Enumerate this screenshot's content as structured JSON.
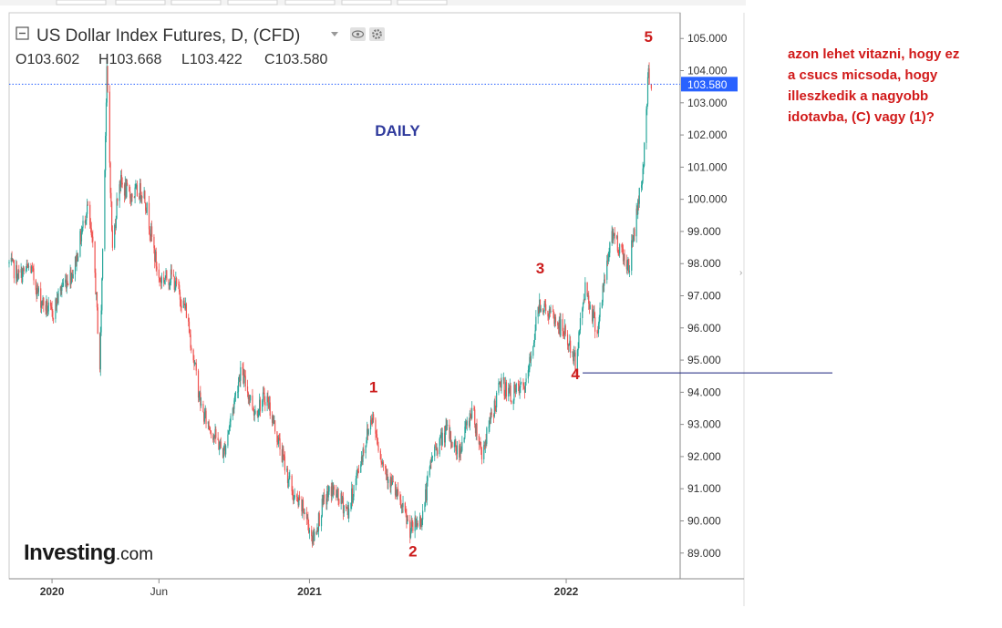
{
  "header": {
    "title": "US Dollar Index Futures, D, (CFD)",
    "ohlc": [
      {
        "key": "O",
        "value": "103.602"
      },
      {
        "key": "H",
        "value": "103.668"
      },
      {
        "key": "L",
        "value": "103.422"
      },
      {
        "key": "C",
        "value": "103.580"
      }
    ]
  },
  "chart_label": "DAILY",
  "watermark": {
    "brand": "Investing",
    "suffix": ".com"
  },
  "note": [
    "azon lehet vitazni, hogy ez",
    "a csucs micsoda, hogy",
    "illeszkedik a nagyobb",
    "idotavba, (C) vagy (1)?"
  ],
  "colors": {
    "up": "#26a69a",
    "down": "#ef5350",
    "last_price": "#2962ff",
    "annotation": "#cc1d1d",
    "daily": "#2f3a9c"
  },
  "icons": [
    "collapse-icon",
    "dropdown-arrow-icon",
    "eye-icon",
    "gear-icon"
  ],
  "chart_data": {
    "type": "line",
    "title": "US Dollar Index Futures, D, (CFD)",
    "interval": "D",
    "ylim": [
      88.2,
      105.8
    ],
    "y_ticks": [
      "105.000",
      "104.000",
      "103.000",
      "102.000",
      "101.000",
      "100.000",
      "99.000",
      "98.000",
      "97.000",
      "96.000",
      "95.000",
      "94.000",
      "93.000",
      "92.000",
      "91.000",
      "90.000",
      "89.000"
    ],
    "x_ticks": [
      {
        "label": "2020",
        "date": "2020-01-01",
        "bold": true
      },
      {
        "label": "Jun",
        "date": "2020-06-01",
        "bold": false
      },
      {
        "label": "2021",
        "date": "2021-01-01",
        "bold": true
      },
      {
        "label": "2022",
        "date": "2022-01-01",
        "bold": true
      }
    ],
    "last_price": {
      "label": "103.580",
      "value": 103.58
    },
    "series": [
      {
        "points": [
          [
            "2019-11-01",
            98.0
          ],
          [
            "2019-11-15",
            97.6
          ],
          [
            "2019-12-01",
            97.9
          ],
          [
            "2019-12-15",
            96.9
          ],
          [
            "2020-01-01",
            96.4
          ],
          [
            "2020-01-15",
            97.3
          ],
          [
            "2020-02-01",
            97.8
          ],
          [
            "2020-02-20",
            99.8
          ],
          [
            "2020-03-01",
            98.1
          ],
          [
            "2020-03-09",
            94.8
          ],
          [
            "2020-03-19",
            103.9
          ],
          [
            "2020-03-27",
            98.4
          ],
          [
            "2020-04-05",
            100.6
          ],
          [
            "2020-04-20",
            100.1
          ],
          [
            "2020-05-10",
            100.3
          ],
          [
            "2020-06-01",
            97.5
          ],
          [
            "2020-06-20",
            97.6
          ],
          [
            "2020-07-10",
            96.5
          ],
          [
            "2020-08-01",
            93.4
          ],
          [
            "2020-08-20",
            92.6
          ],
          [
            "2020-09-01",
            92.1
          ],
          [
            "2020-09-25",
            94.7
          ],
          [
            "2020-10-15",
            93.4
          ],
          [
            "2020-11-01",
            93.9
          ],
          [
            "2020-11-20",
            92.3
          ],
          [
            "2020-12-10",
            90.7
          ],
          [
            "2020-12-25",
            90.3
          ],
          [
            "2021-01-06",
            89.4
          ],
          [
            "2021-01-20",
            90.5
          ],
          [
            "2021-02-01",
            91.0
          ],
          [
            "2021-02-25",
            90.3
          ],
          [
            "2021-03-15",
            91.9
          ],
          [
            "2021-03-31",
            93.3
          ],
          [
            "2021-04-15",
            91.8
          ],
          [
            "2021-05-01",
            91.0
          ],
          [
            "2021-05-25",
            89.7
          ],
          [
            "2021-06-10",
            90.1
          ],
          [
            "2021-06-25",
            92.1
          ],
          [
            "2021-07-15",
            92.8
          ],
          [
            "2021-08-01",
            92.1
          ],
          [
            "2021-08-20",
            93.5
          ],
          [
            "2021-09-03",
            92.1
          ],
          [
            "2021-09-30",
            94.3
          ],
          [
            "2021-10-15",
            93.9
          ],
          [
            "2021-11-05",
            94.2
          ],
          [
            "2021-11-24",
            96.8
          ],
          [
            "2021-12-10",
            96.4
          ],
          [
            "2021-12-31",
            95.8
          ],
          [
            "2022-01-14",
            94.9
          ],
          [
            "2022-01-28",
            97.3
          ],
          [
            "2022-02-14",
            95.9
          ],
          [
            "2022-03-07",
            99.0
          ],
          [
            "2022-03-31",
            97.9
          ],
          [
            "2022-04-20",
            100.9
          ],
          [
            "2022-04-28",
            103.9
          ],
          [
            "2022-05-03",
            103.58
          ]
        ]
      }
    ],
    "wave_labels": [
      {
        "label": "1",
        "date": "2021-04-02",
        "value": 94.0
      },
      {
        "label": "2",
        "date": "2021-05-28",
        "value": 88.9
      },
      {
        "label": "3",
        "date": "2021-11-25",
        "value": 97.7
      },
      {
        "label": "4",
        "date": "2022-01-14",
        "value": 94.4
      },
      {
        "label": "5",
        "date": "2022-04-28",
        "value": 104.9
      }
    ],
    "reference_line": {
      "value": 94.6,
      "from": "2022-01-14"
    }
  }
}
